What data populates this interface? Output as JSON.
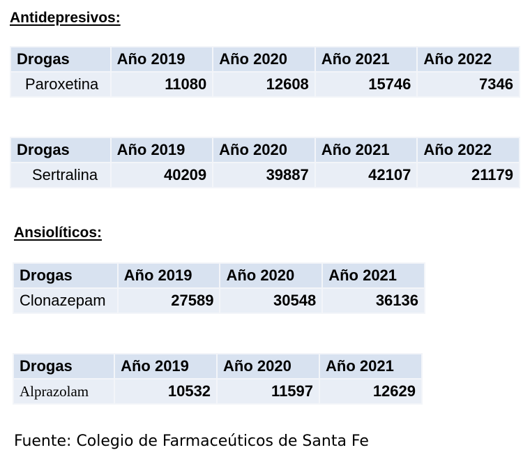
{
  "sections": [
    {
      "title": "Antidepresivos:",
      "tables": [
        {
          "headers": [
            "Drogas",
            "Año 2019",
            "Año 2020",
            "Año 2021",
            "Año 2022"
          ],
          "drug": "Paroxetina",
          "values": [
            "11080",
            "12608",
            "15746",
            "7346"
          ]
        },
        {
          "headers": [
            "Drogas",
            "Año 2019",
            "Año 2020",
            "Año 2021",
            "Año 2022"
          ],
          "drug": "Sertralina",
          "values": [
            "40209",
            "39887",
            "42107",
            "21179"
          ]
        }
      ]
    },
    {
      "title": "Ansiolíticos:",
      "tables": [
        {
          "headers": [
            "Drogas",
            "Año 2019",
            "Año 2020",
            "Año 2021"
          ],
          "drug": "Clonazepam",
          "values": [
            "27589",
            "30548",
            "36136"
          ]
        },
        {
          "headers": [
            "Drogas",
            "Año 2019",
            "Año 2020",
            "Año 2021"
          ],
          "drug": "Alprazolam",
          "values": [
            "10532",
            "11597",
            "12629"
          ]
        }
      ]
    }
  ],
  "source": "Fuente: Colegio de Farmaceúticos de Santa Fe"
}
